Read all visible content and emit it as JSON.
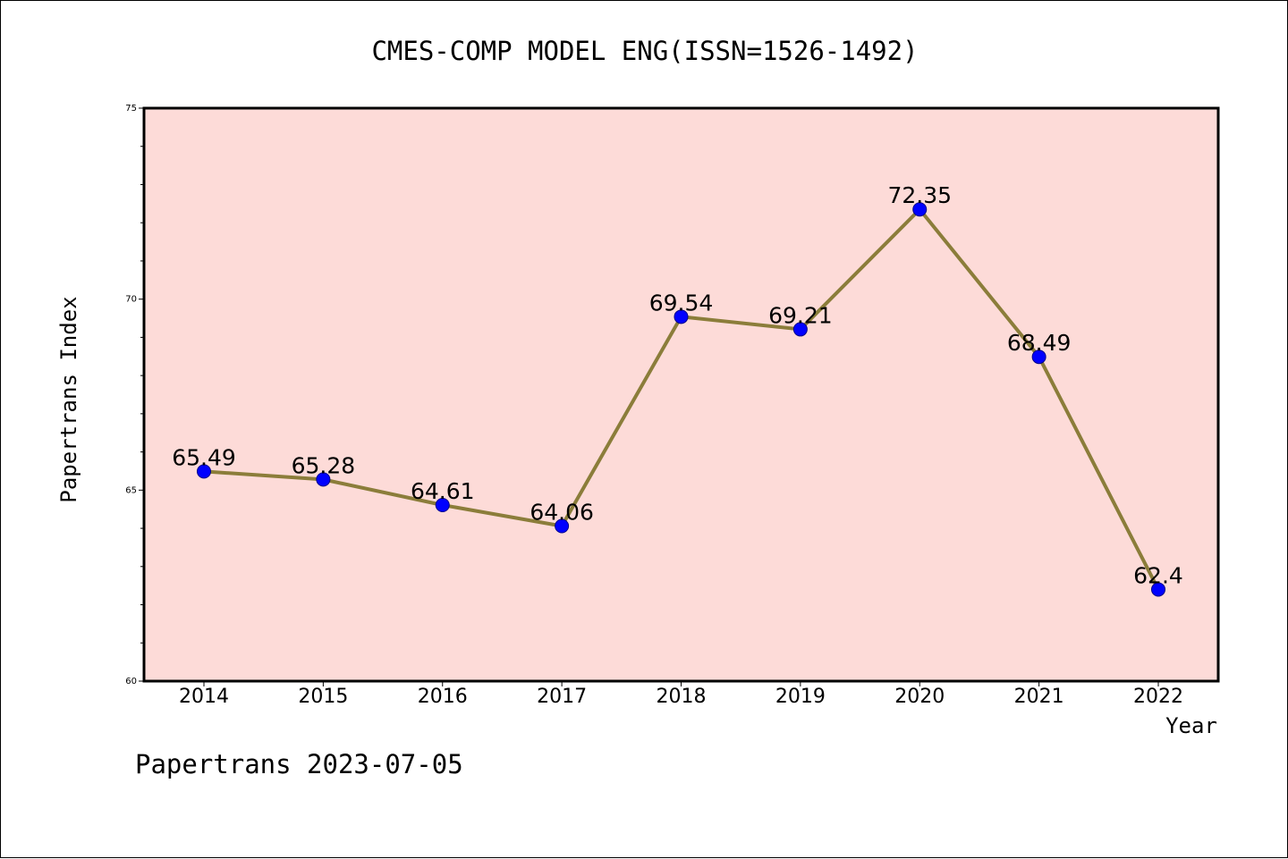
{
  "chart_data": {
    "type": "line",
    "title": "CMES-COMP MODEL ENG(ISSN=1526-1492)",
    "xlabel": "Year",
    "ylabel": "Papertrans Index",
    "categories": [
      "2014",
      "2015",
      "2016",
      "2017",
      "2018",
      "2019",
      "2020",
      "2021",
      "2022"
    ],
    "series": [
      {
        "values": [
          65.49,
          65.28,
          64.61,
          64.06,
          69.54,
          69.21,
          72.35,
          68.49,
          62.4
        ],
        "labels": [
          "65.49",
          "65.28",
          "64.61",
          "64.06",
          "69.54",
          "69.21",
          "72.35",
          "68.49",
          "62.4"
        ]
      }
    ],
    "ylim": [
      60,
      75
    ],
    "yticks": [
      60,
      65,
      70,
      75
    ],
    "ytick_labels": [
      "60",
      "65",
      "70",
      "75"
    ],
    "y_minor_step": 1,
    "grid": false,
    "colors": {
      "plot_background": "#fddbd8",
      "line": "#8b7d3a",
      "marker": "#0000ff",
      "marker_edge": "#00008b",
      "axes": "#000000"
    }
  },
  "footer": {
    "source_text": "Papertrans 2023-07-05"
  }
}
